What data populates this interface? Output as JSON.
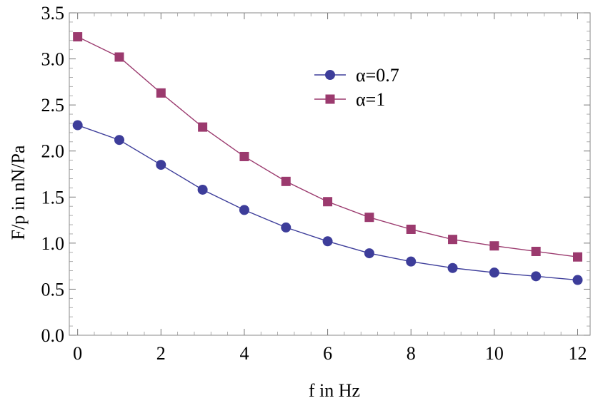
{
  "chart_data": {
    "type": "line",
    "title": "",
    "xlabel": "f in Hz",
    "ylabel": "F/p in nN/Pa",
    "xlim": [
      -0.2,
      12.3
    ],
    "ylim": [
      0.0,
      3.5
    ],
    "x_ticks": [
      "0",
      "2",
      "4",
      "6",
      "8",
      "10",
      "12"
    ],
    "y_ticks": [
      "0.0",
      "0.5",
      "1.0",
      "1.5",
      "2.0",
      "2.5",
      "3.0",
      "3.5"
    ],
    "grid": false,
    "legend_position": "top-right",
    "x": [
      0,
      1,
      2,
      3,
      4,
      5,
      6,
      7,
      8,
      9,
      10,
      11,
      12
    ],
    "series": [
      {
        "name": "α=0.7",
        "color": "#3d3d9a",
        "marker": "circle",
        "values": [
          2.28,
          2.12,
          1.85,
          1.58,
          1.36,
          1.17,
          1.02,
          0.89,
          0.8,
          0.73,
          0.68,
          0.64,
          0.6
        ]
      },
      {
        "name": "α=1",
        "color": "#9b3a6e",
        "marker": "square",
        "values": [
          3.24,
          3.02,
          2.63,
          2.26,
          1.94,
          1.67,
          1.45,
          1.28,
          1.15,
          1.04,
          0.97,
          0.91,
          0.85
        ]
      }
    ]
  }
}
